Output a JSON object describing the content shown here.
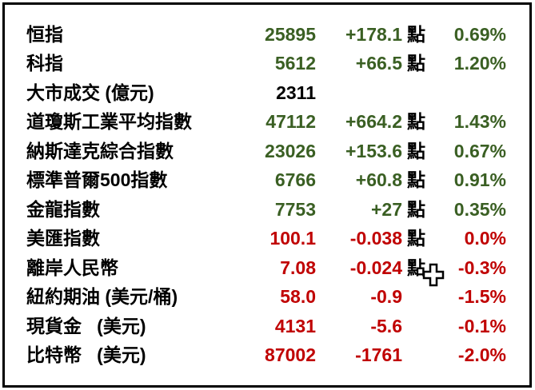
{
  "colors": {
    "positive": "#3A5F23",
    "negative": "#C00000",
    "text": "#000000",
    "border": "#000000",
    "background": "#FFFFFF"
  },
  "table": {
    "rows": [
      {
        "label": "恒指",
        "value": "25895",
        "change": "+178.1",
        "unit": "點",
        "percent": "0.69%",
        "direction": "up"
      },
      {
        "label": "科指",
        "value": "5612",
        "change": "+66.5",
        "unit": "點",
        "percent": "1.20%",
        "direction": "up"
      },
      {
        "label": "大市成交 (億元)",
        "value": "2311",
        "change": "",
        "unit": "",
        "percent": "",
        "direction": "none"
      },
      {
        "label": "道瓊斯工業平均指數",
        "value": "47112",
        "change": "+664.2",
        "unit": "點",
        "percent": "1.43%",
        "direction": "up"
      },
      {
        "label": "納斯達克綜合指數",
        "value": "23026",
        "change": "+153.6",
        "unit": "點",
        "percent": "0.67%",
        "direction": "up"
      },
      {
        "label": "標準普爾500指數",
        "value": "6766",
        "change": "+60.8",
        "unit": "點",
        "percent": "0.91%",
        "direction": "up"
      },
      {
        "label": "金龍指數",
        "value": "7753",
        "change": "+27",
        "unit": "點",
        "percent": "0.35%",
        "direction": "up"
      },
      {
        "label": "美匯指數",
        "value": "100.1",
        "change": "-0.038",
        "unit": "點",
        "percent": "0.0%",
        "direction": "down"
      },
      {
        "label": "離岸人民幣",
        "value": "7.08",
        "change": "-0.024",
        "unit": "點",
        "percent": "-0.3%",
        "direction": "down"
      },
      {
        "label": "紐約期油 (美元/桶)",
        "value": "58.0",
        "change": "-0.9",
        "unit": "",
        "percent": "-1.5%",
        "direction": "down"
      },
      {
        "label": "現貨金   (美元)",
        "value": "4131",
        "change": "-5.6",
        "unit": "",
        "percent": "-0.1%",
        "direction": "down"
      },
      {
        "label": "比特幣   (美元)",
        "value": "87002",
        "change": "-1761",
        "unit": "",
        "percent": "-2.0%",
        "direction": "down"
      }
    ]
  },
  "cursor": {
    "type": "excel-cell-cursor"
  }
}
